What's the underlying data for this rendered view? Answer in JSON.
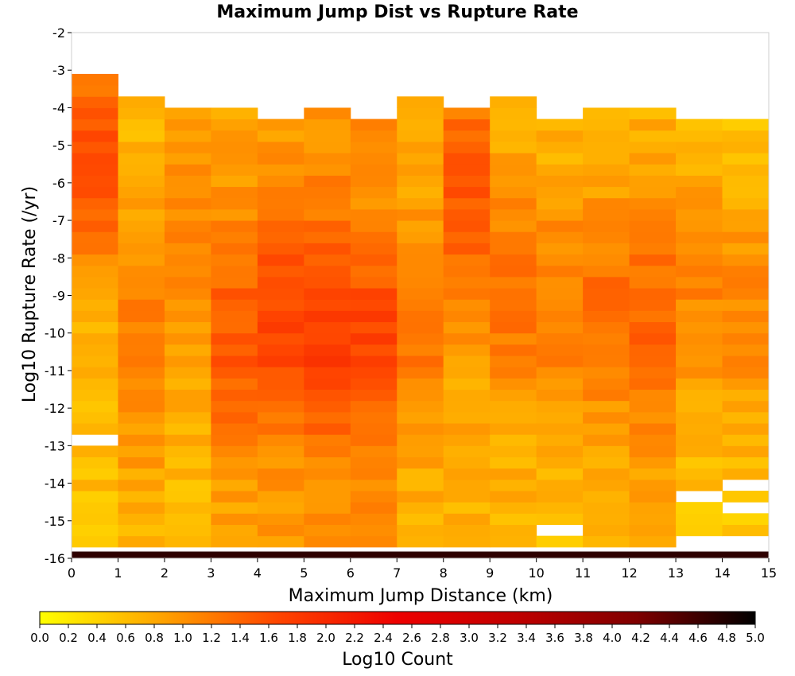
{
  "chart_data": {
    "type": "heatmap",
    "title": "Maximum Jump Dist vs Rupture Rate",
    "xlabel": "Maximum Jump Distance (km)",
    "ylabel": "Log10 Rupture Rate (/yr)",
    "colorbar_label": "Log10 Count",
    "xlim": [
      0,
      15
    ],
    "ylim": [
      -16,
      -2
    ],
    "x_ticks": [
      0,
      1,
      2,
      3,
      4,
      5,
      6,
      7,
      8,
      9,
      10,
      11,
      12,
      13,
      14,
      15
    ],
    "y_ticks": [
      -2,
      -3,
      -4,
      -5,
      -6,
      -7,
      -8,
      -9,
      -10,
      -11,
      -12,
      -13,
      -14,
      -15,
      -16
    ],
    "colorbar_ticks": [
      "0.0",
      "0.2",
      "0.4",
      "0.6",
      "0.8",
      "1.0",
      "1.2",
      "1.4",
      "1.6",
      "1.8",
      "2.0",
      "2.2",
      "2.4",
      "2.6",
      "2.8",
      "3.0",
      "3.2",
      "3.4",
      "3.6",
      "3.8",
      "4.0",
      "4.2",
      "4.4",
      "4.6",
      "4.8",
      "5.0"
    ],
    "color_range": [
      0,
      5
    ],
    "colormap": [
      "#ffff00",
      "#ffa500",
      "#ff4500",
      "#ee0000",
      "#c00000",
      "#800000",
      "#000000"
    ],
    "cell_x_width": 1,
    "cell_y_height": 0.3,
    "cell_y_start": -16,
    "column_profiles": [
      {
        "x": 0,
        "top_y": -3.0,
        "base": 0.6,
        "peak": 1.6,
        "peak_y": -5.5,
        "spread": 3.0
      },
      {
        "x": 1,
        "top_y": -3.6,
        "base": 0.7,
        "peak": 1.2,
        "peak_y": -10.5,
        "spread": 3.0
      },
      {
        "x": 2,
        "top_y": -3.9,
        "base": 0.65,
        "peak": 1.1,
        "peak_y": -7.0,
        "spread": 4.0
      },
      {
        "x": 3,
        "top_y": -3.9,
        "base": 0.8,
        "peak": 1.5,
        "peak_y": -10.3,
        "spread": 3.2
      },
      {
        "x": 4,
        "top_y": -4.2,
        "base": 0.9,
        "peak": 1.7,
        "peak_y": -9.8,
        "spread": 3.0
      },
      {
        "x": 5,
        "top_y": -3.9,
        "base": 0.95,
        "peak": 1.8,
        "peak_y": -10.0,
        "spread": 3.0
      },
      {
        "x": 6,
        "top_y": -4.2,
        "base": 1.0,
        "peak": 1.7,
        "peak_y": -10.2,
        "spread": 2.5
      },
      {
        "x": 7,
        "top_y": -3.6,
        "base": 0.7,
        "peak": 1.3,
        "peak_y": -10.0,
        "spread": 3.0
      },
      {
        "x": 8,
        "top_y": -3.9,
        "base": 0.75,
        "peak": 1.5,
        "peak_y": -6.5,
        "spread": 3.5
      },
      {
        "x": 9,
        "top_y": -3.6,
        "base": 0.7,
        "peak": 1.3,
        "peak_y": -9.0,
        "spread": 3.0
      },
      {
        "x": 10,
        "top_y": -4.2,
        "base": 0.6,
        "peak": 1.2,
        "peak_y": -9.5,
        "spread": 3.5
      },
      {
        "x": 11,
        "top_y": -3.9,
        "base": 0.6,
        "peak": 1.3,
        "peak_y": -9.5,
        "spread": 3.5
      },
      {
        "x": 12,
        "top_y": -3.9,
        "base": 0.7,
        "peak": 1.4,
        "peak_y": -10.0,
        "spread": 3.5
      },
      {
        "x": 13,
        "top_y": -4.2,
        "base": 0.55,
        "peak": 1.1,
        "peak_y": -9.0,
        "spread": 3.5
      },
      {
        "x": 14,
        "top_y": -4.2,
        "base": 0.5,
        "peak": 1.1,
        "peak_y": -9.5,
        "spread": 3.5
      }
    ],
    "bottom_row": {
      "y": -16.0,
      "value": 4.7
    },
    "empty_cells": [
      {
        "x": 0,
        "y": -12.9
      },
      {
        "x": 6,
        "y": -4.0
      },
      {
        "x": 10,
        "y": -15.3
      },
      {
        "x": 10,
        "y": -15.9
      },
      {
        "x": 13,
        "y": -14.4
      },
      {
        "x": 13,
        "y": -15.6
      },
      {
        "x": 14,
        "y": -14.1
      },
      {
        "x": 14,
        "y": -14.7
      },
      {
        "x": 14,
        "y": -15.6
      }
    ]
  }
}
